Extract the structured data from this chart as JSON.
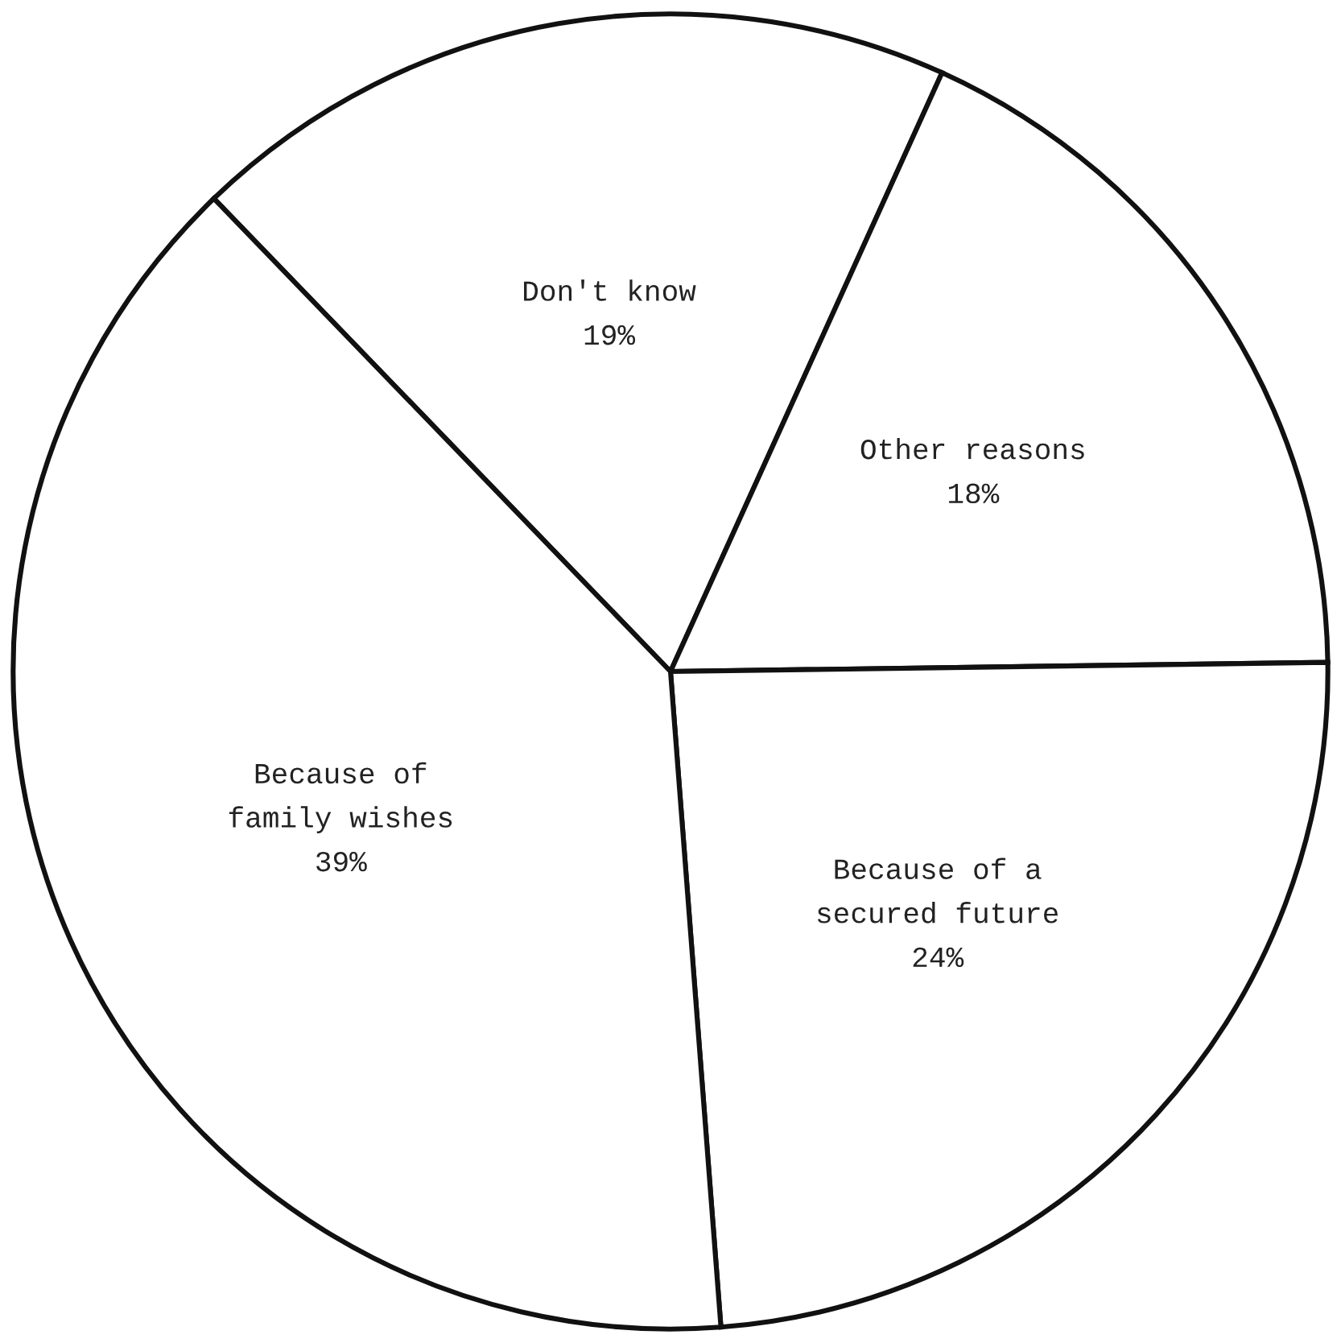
{
  "chart_data": {
    "type": "pie",
    "categories": [
      "Don't know",
      "Other reasons",
      "Because of a\nsecured future",
      "Because of\nfamily wishes"
    ],
    "values": [
      19,
      18,
      24,
      39
    ],
    "colors": [
      "#ffffff",
      "#ffffff",
      "#ffffff",
      "#ffffff"
    ],
    "value_labels": [
      "19%",
      "18%",
      "24%",
      "39%"
    ],
    "legend": false
  }
}
